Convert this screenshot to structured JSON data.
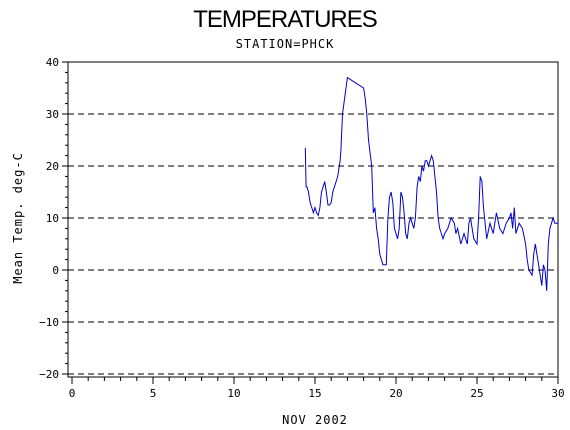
{
  "chart_data": {
    "type": "line",
    "title": "TEMPERATURES",
    "subtitle": "STATION=PHCK",
    "xlabel": "NOV 2002",
    "ylabel": "Mean Temp. deg-C",
    "xlim": [
      0,
      30
    ],
    "ylim": [
      -20,
      40
    ],
    "x_ticks": [
      0,
      5,
      10,
      15,
      20,
      25,
      30
    ],
    "y_ticks": [
      -20,
      -10,
      0,
      10,
      20,
      30,
      40
    ],
    "grid": "horizontal-dashed",
    "series": [
      {
        "color": "#0000cc",
        "x": [
          14.4,
          14.45,
          14.5,
          14.6,
          14.7,
          14.8,
          14.9,
          15.0,
          15.1,
          15.2,
          15.3,
          15.4,
          15.5,
          15.6,
          15.7,
          15.8,
          15.9,
          16.0,
          16.1,
          16.2,
          16.3,
          16.4,
          16.5,
          16.55,
          16.6,
          16.7,
          17.0,
          17.5,
          18.0,
          18.1,
          18.2,
          18.3,
          18.5,
          18.6,
          18.7,
          18.8,
          18.9,
          19.0,
          19.1,
          19.2,
          19.3,
          19.4,
          19.5,
          19.6,
          19.7,
          19.8,
          19.9,
          20.0,
          20.1,
          20.2,
          20.3,
          20.4,
          20.5,
          20.6,
          20.7,
          20.8,
          20.9,
          21.0,
          21.1,
          21.2,
          21.3,
          21.4,
          21.5,
          21.6,
          21.7,
          21.8,
          21.9,
          22.0,
          22.1,
          22.2,
          22.3,
          22.4,
          22.5,
          22.6,
          22.7,
          22.8,
          22.9,
          23.0,
          23.2,
          23.4,
          23.6,
          23.7,
          23.8,
          24.0,
          24.2,
          24.4,
          24.5,
          24.6,
          24.8,
          25.0,
          25.1,
          25.2,
          25.3,
          25.4,
          25.5,
          25.6,
          25.8,
          26.0,
          26.2,
          26.4,
          26.6,
          26.8,
          27.0,
          27.1,
          27.2,
          27.3,
          27.4,
          27.6,
          27.8,
          28.0,
          28.1,
          28.2,
          28.4,
          28.5,
          28.6,
          28.8,
          28.9,
          29.0,
          29.1,
          29.2,
          29.3,
          29.4,
          29.5,
          29.6,
          29.7,
          29.8,
          30.0
        ],
        "y": [
          23.5,
          16,
          16,
          15,
          13,
          12,
          11,
          12,
          11,
          10.5,
          12,
          15,
          16,
          17,
          15,
          12.5,
          12.5,
          13,
          15,
          16,
          17,
          18,
          20,
          21,
          23,
          30,
          37,
          36,
          35,
          33,
          30,
          25,
          20,
          11,
          12,
          8,
          6,
          3,
          2,
          1,
          1,
          1,
          10,
          14,
          15,
          13,
          8,
          7,
          6,
          8,
          15,
          14,
          11,
          7,
          6,
          9,
          10,
          9,
          8,
          10,
          16,
          18,
          17,
          20,
          19,
          21,
          21,
          20,
          21,
          22,
          21,
          18,
          15,
          10,
          8,
          7,
          6,
          7,
          8,
          10,
          9,
          7,
          8,
          5,
          7,
          5,
          9,
          10,
          6,
          5,
          10,
          18,
          17,
          12,
          9,
          6,
          9,
          7,
          11,
          8,
          7,
          9,
          10,
          11,
          8,
          12,
          7,
          9,
          8,
          5,
          2,
          0,
          -1,
          3,
          5,
          1,
          -1,
          -3,
          1,
          0,
          -4,
          5,
          8,
          9,
          10,
          9,
          9
        ]
      }
    ]
  }
}
